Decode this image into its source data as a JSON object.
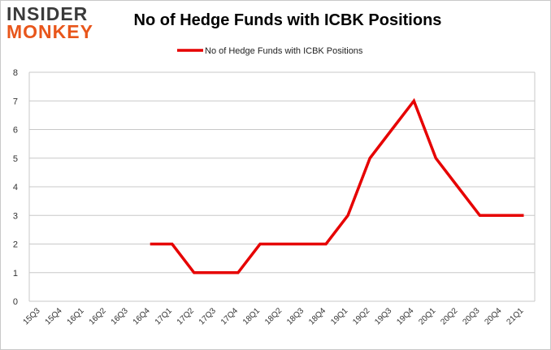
{
  "logo": {
    "line1": "INSIDER",
    "line2": "MONKEY"
  },
  "colors": {
    "series": "#e60000",
    "grid": "#c8c8c8",
    "logo_accent": "#e8561b",
    "logo_dark": "#3a3a3a"
  },
  "chart_data": {
    "type": "line",
    "title": "No of Hedge Funds with ICBK Positions",
    "xlabel": "",
    "ylabel": "",
    "categories": [
      "15Q3",
      "15Q4",
      "16Q1",
      "16Q2",
      "16Q3",
      "16Q4",
      "17Q1",
      "17Q2",
      "17Q3",
      "17Q4",
      "18Q1",
      "18Q2",
      "18Q3",
      "18Q4",
      "19Q1",
      "19Q2",
      "19Q3",
      "19Q4",
      "20Q1",
      "20Q2",
      "20Q3",
      "20Q4",
      "21Q1"
    ],
    "series": [
      {
        "name": "No of Hedge Funds with ICBK Positions",
        "values": [
          null,
          null,
          null,
          null,
          null,
          2,
          2,
          1,
          1,
          1,
          2,
          2,
          2,
          2,
          3,
          5,
          6,
          7,
          5,
          4,
          3,
          3,
          3
        ]
      }
    ],
    "ylim": [
      0,
      8
    ],
    "yticks": [
      0,
      1,
      2,
      3,
      4,
      5,
      6,
      7,
      8
    ],
    "grid": true,
    "legend": "top-center"
  }
}
